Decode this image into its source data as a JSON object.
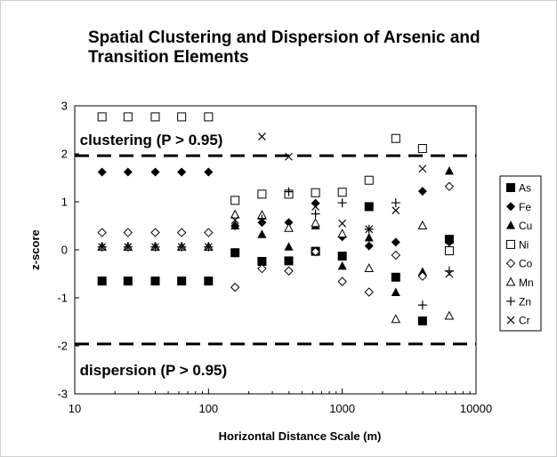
{
  "chart_data": {
    "type": "scatter",
    "title_lines": [
      "Spatial Clustering and Dispersion of Arsenic and",
      "Transition Elements"
    ],
    "xlabel": "Horizontal Distance Scale (m)",
    "ylabel": "z-score",
    "x_scale": "log",
    "xlim": [
      10,
      10000
    ],
    "ylim": [
      -3,
      3
    ],
    "x_ticks": [
      10,
      100,
      1000,
      10000
    ],
    "x_tick_labels": [
      "10",
      "100",
      "1000",
      "10000"
    ],
    "y_ticks": [
      -3,
      -2,
      -1,
      0,
      1,
      2,
      3
    ],
    "y_tick_labels": [
      "-3",
      "-2",
      "-1",
      "0",
      "1",
      "2",
      "3"
    ],
    "grid": false,
    "legend_position": "right",
    "threshold_lines": [
      1.96,
      -1.96
    ],
    "annotations": [
      {
        "text": "clustering (P > 0.95)",
        "x": 16,
        "y": 2.3
      },
      {
        "text": "dispersion (P > 0.95)",
        "x": 16,
        "y": -2.5
      }
    ],
    "x": [
      16,
      25,
      40,
      63,
      100,
      158,
      251,
      398,
      631,
      1000,
      1585,
      2512,
      3981,
      6310
    ],
    "series": [
      {
        "name": "As",
        "marker": "square-filled",
        "values": [
          -0.65,
          -0.65,
          -0.65,
          -0.65,
          -0.65,
          -0.06,
          -0.24,
          -0.23,
          -0.03,
          -0.13,
          0.9,
          -0.57,
          -1.48,
          0.22
        ]
      },
      {
        "name": "Fe",
        "marker": "diamond-filled",
        "values": [
          1.62,
          1.62,
          1.62,
          1.62,
          1.62,
          0.5,
          0.57,
          0.57,
          0.97,
          0.27,
          0.08,
          0.16,
          1.22,
          0.16
        ]
      },
      {
        "name": "Cu",
        "marker": "triangle-filled",
        "values": [
          0.06,
          0.06,
          0.06,
          0.06,
          0.06,
          0.5,
          0.32,
          0.06,
          0.5,
          -0.34,
          0.25,
          -0.89,
          -0.46,
          1.64
        ]
      },
      {
        "name": "Ni",
        "marker": "square-open",
        "values": [
          2.77,
          2.77,
          2.77,
          2.77,
          2.77,
          1.03,
          1.16,
          1.16,
          1.19,
          1.2,
          1.45,
          2.32,
          2.11,
          -0.02
        ]
      },
      {
        "name": "Co",
        "marker": "diamond-open",
        "values": [
          0.36,
          0.36,
          0.36,
          0.36,
          0.36,
          -0.78,
          -0.39,
          -0.44,
          -0.04,
          -0.66,
          -0.88,
          -0.11,
          -0.55,
          1.32
        ]
      },
      {
        "name": "Mn",
        "marker": "triangle-open",
        "values": [
          0.06,
          0.06,
          0.06,
          0.06,
          0.06,
          0.73,
          0.72,
          0.45,
          0.55,
          0.33,
          -0.39,
          -1.45,
          0.5,
          -1.38
        ]
      },
      {
        "name": "Zn",
        "marker": "plus",
        "values": [
          0.06,
          0.06,
          0.06,
          0.06,
          0.06,
          -0.06,
          0.64,
          1.21,
          0.75,
          0.98,
          0.43,
          0.98,
          -1.15,
          -0.44
        ]
      },
      {
        "name": "Cr",
        "marker": "cross",
        "values": [
          0.06,
          0.06,
          0.06,
          0.06,
          0.06,
          0.62,
          2.36,
          1.94,
          0.9,
          0.55,
          0.43,
          0.82,
          1.69,
          -0.5
        ]
      }
    ]
  }
}
